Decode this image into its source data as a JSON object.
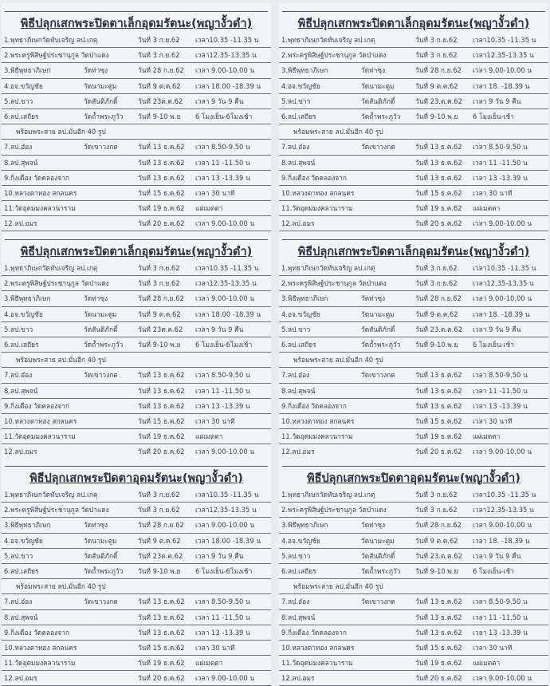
{
  "panels": [
    {
      "title": "พิธีปลุกเสกพระปิดตาเล็กอุดมรัตนะ(พญางั้วดำ)",
      "variant": "left"
    },
    {
      "title": "พิธีปลุกเสกพระปิดตาเล็กอุดมรัตนะ(พญางั้วดำ)",
      "variant": "right"
    },
    {
      "title": "พิธีปลุกเสกพระปิดตาเล็กอุดมรัตนะ(พญางั้วดำ)",
      "variant": "left"
    },
    {
      "title": "พิธีปลุกเสกพระปิดตาเล็กอุดมรัตนะ(พญางั้วดำ)",
      "variant": "right"
    },
    {
      "title": "พิธีปลุกเสกพระปิดตาอุดมรัตนะ(พญางั้วดำ)",
      "variant": "left"
    },
    {
      "title": "พิธีปลุกเสกพระปิดตาอุดมรัตนะ(พญางั้วดำ)",
      "variant": "right"
    }
  ],
  "schedule_left": [
    {
      "name": "1.พุทธาภิเษกวัดทับเจริญ ลป.เกตุ",
      "place": "",
      "date": "วันที่ 3 ก.ย.62",
      "time": "เวลา10.35 -11.35 น"
    },
    {
      "name": "2.พระครูพิสิษฐ์ประชานุกูล วัดป่าแดง",
      "place": "",
      "date": "วันที่ 3 ก.ย.62",
      "time": "เวลา12.35-13.35 น"
    },
    {
      "name": "3.พิธีพุทธาภิเษก",
      "place": "วัดท่าซุง",
      "date": "วันที่  28 ก.ย.62",
      "time": "เวลา 9.00-10.00 น"
    },
    {
      "name": "4.อจ.ขวัญชัย",
      "place": "วัดนามะตูม",
      "date": "วันที่ 9 ต.ค.62",
      "time": "เวลา 18.00 -18.39 น"
    },
    {
      "name": "5.ลป.ขาว",
      "place": "วัดสันติภักดิ์",
      "date": "วันที่ 23ต.ค.62",
      "time": "เวลา 9 วัน 9 คืน"
    },
    {
      "name": "6.ลป.เสถียร",
      "place": "วัดถ้ำพระภูวัว",
      "date": "วันที่ 9-10 พ.ย",
      "time": "6 โมงเย็น-6โมงเช้า"
    },
    {
      "note": "พร้อมพระสาย ลป.มั่นอีก 40 รูป"
    },
    {
      "name": "7.ลป.อ๋อง",
      "place": "วัดเขาวงกต",
      "date": "วันที่ 13 ธ.ค.62",
      "time": "เวลา 8.50-9.50 น"
    },
    {
      "name": "8.ลป.สุพจน์",
      "place": "",
      "date": "วันที่ 13 ธ.ค.62",
      "time": "เวลา 11 -11.50 น"
    },
    {
      "name": "9.กิ่งเดือง  วัดคลองจาก",
      "place": "",
      "date": "วันที่ 13 ธ.ค.62",
      "time": "เวลา 13 -13.39 น"
    },
    {
      "name": "10.หลวงตาทอง   สกลนคร",
      "place": "",
      "date": "วันที่ 15 ธ.ค.62",
      "time": "เวลา  30 นาที"
    },
    {
      "name": "11.วัดอุดมมงคลวนาราม",
      "place": "",
      "date": "วันที่ 19 ธ.ค.62",
      "time": "แผ่เมตตา"
    },
    {
      "name": "12.ลป.อมร",
      "place": "",
      "date": "วันที่ 20 ธ.ค.62",
      "time": "เวลา 9.00-10.00 น"
    }
  ],
  "schedule_right": [
    {
      "name": "1.พุทธาภิเษกวัดทับเจริญ ลป.เกตุ",
      "place": "",
      "date": "วันที่ 3 ก.ย.62",
      "time": "เวลา10.35 -11.35 น"
    },
    {
      "name": "2.พระครูพิสิษฐ์ประชานุกูล วัดป่าแดง",
      "place": "",
      "date": "วันที่ 3 ก.ย.62",
      "time": "เวลา12.35-13.35 น"
    },
    {
      "name": "3.พิธีพุทธาภิเษก",
      "place": "วัดท่าซุง",
      "date": "วันที่  28 ก.ย.62",
      "time": "เวลา 9.00-10.00 น"
    },
    {
      "name": "4.อจ.ขวัญชัย",
      "place": "วัดนามะตูม",
      "date": "วันที่ 9 ต.ค.62",
      "time": "เวลา 18. -18.39 น"
    },
    {
      "name": "5.ลป.ขาว",
      "place": "วัดสันติภักดิ์",
      "date": "วันที่ 23.ต.ค.62",
      "time": "เวลา 9 วัน 9 คืน"
    },
    {
      "name": "6.ลป.เสถียร",
      "place": "วัดถ้ำพระภูวัว",
      "date": "วันที่ 9-10 พ.ย",
      "time": "6 โมงเย็น-เช้า"
    },
    {
      "note": "พร้อมพระสาย ลป.มั่นอีก 40 รูป"
    },
    {
      "name": "7.ลป.อ๋อง",
      "place": "วัดเขาวงกต",
      "date": "วันที่ 13 ธ.ค.62",
      "time": "เวลา 8.50-9.50 น"
    },
    {
      "name": "8.ลป.สุพจน์",
      "place": "",
      "date": "วันที่ 13 ธ.ค.62",
      "time": "เวลา 11 -11.50 น"
    },
    {
      "name": "9.กิ่งเดือง  วัดคลองจาก",
      "place": "",
      "date": "วันที่ 13 ธ.ค.62",
      "time": "เวลา 13 -13.39 น"
    },
    {
      "name": "10.หลวงตาทอง   สกลนคร",
      "place": "",
      "date": "วันที่ 15 ธ.ค.62",
      "time": "เวลา  30 นาที"
    },
    {
      "name": "11.วัดอุดมมงคลวนาราม",
      "place": "",
      "date": "วันที่ 19 ธ.ค.62",
      "time": "แผ่เมตตา"
    },
    {
      "name": "12.ลป.อมร",
      "place": "",
      "date": "วันที่ 20 ธ.ค.62",
      "time": "เวลา 9.00-10.00 น"
    }
  ]
}
